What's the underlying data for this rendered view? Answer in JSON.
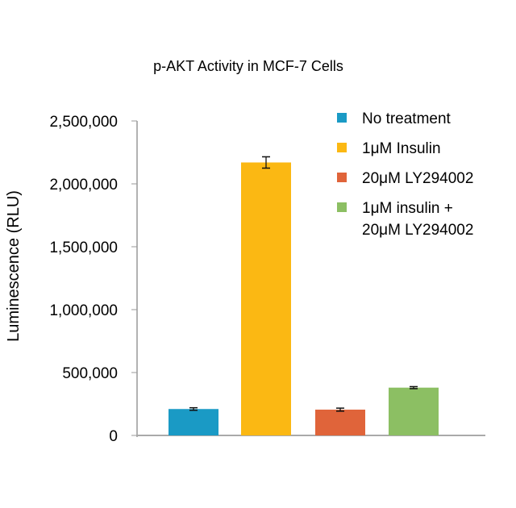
{
  "chart_data": {
    "type": "bar",
    "title": "p-AKT Activity in MCF-7 Cells",
    "xlabel": "",
    "ylabel": "Luminescence (RLU)",
    "ylim": [
      0,
      2500000
    ],
    "yticks": [
      0,
      500000,
      1000000,
      1500000,
      2000000,
      2500000
    ],
    "ytick_labels": [
      "0",
      "500,000",
      "1,000,000",
      "1,500,000",
      "2,000,000",
      "2,500,000"
    ],
    "grid": false,
    "legend_position": "top-right",
    "categories": [
      "No treatment",
      "1μM Insulin",
      "20μM LY294002",
      "1μM insulin + 20μM LY294002"
    ],
    "legend_lines": [
      [
        "No treatment"
      ],
      [
        "1μM Insulin"
      ],
      [
        "20μM LY294002"
      ],
      [
        "1μM insulin +",
        "20μM LY294002"
      ]
    ],
    "values": [
      210000,
      2170000,
      205000,
      380000
    ],
    "errors": [
      10000,
      45000,
      12000,
      8000
    ],
    "colors": [
      "#1a9ac5",
      "#fbb813",
      "#e0643a",
      "#8cbf63"
    ]
  }
}
